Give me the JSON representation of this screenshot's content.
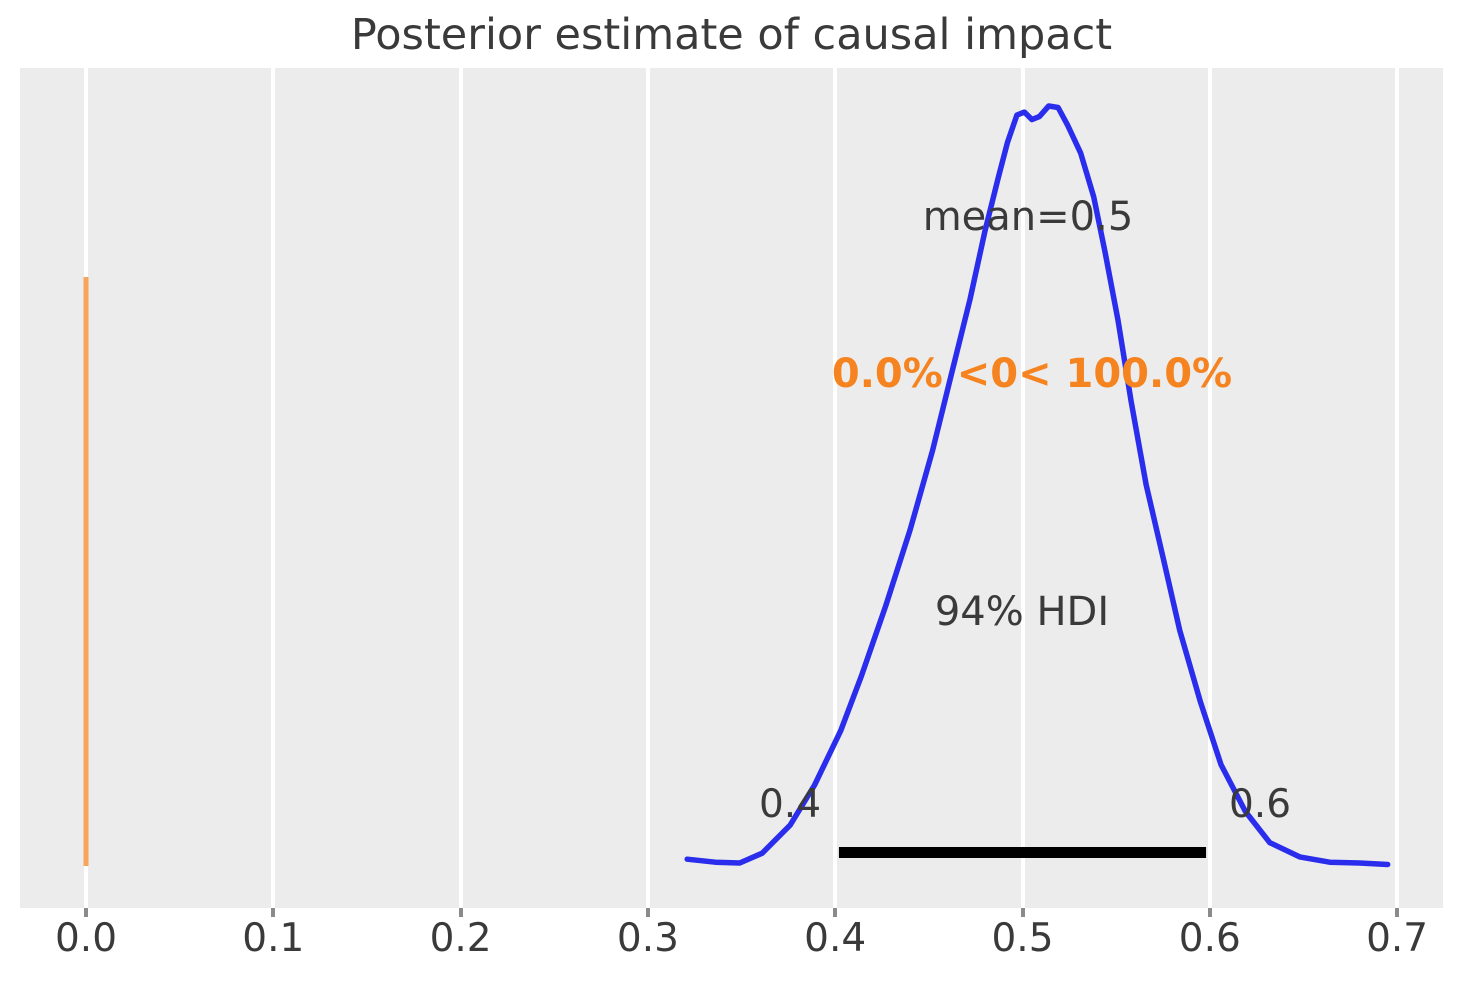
{
  "title": "Posterior estimate of causal impact",
  "chart_data": {
    "type": "area",
    "subtype": "posterior-kde",
    "xlabel": "",
    "ylabel": "",
    "xlim": [
      -0.0352,
      0.7245
    ],
    "grid": "vertical-white-on-gray",
    "x_tick_labels": [
      "0.0",
      "0.1",
      "0.2",
      "0.3",
      "0.4",
      "0.5",
      "0.6",
      "0.7"
    ],
    "x_tick_values": [
      0.0,
      0.1,
      0.2,
      0.3,
      0.4,
      0.5,
      0.6,
      0.7
    ],
    "kde": {
      "x": [
        0.321,
        0.336,
        0.349,
        0.361,
        0.376,
        0.389,
        0.403,
        0.414,
        0.427,
        0.44,
        0.452,
        0.462,
        0.472,
        0.48,
        0.487,
        0.492,
        0.497,
        0.501,
        0.505,
        0.509,
        0.514,
        0.519,
        0.524,
        0.531,
        0.538,
        0.544,
        0.551,
        0.558,
        0.566,
        0.575,
        0.584,
        0.595,
        0.606,
        0.619,
        0.632,
        0.648,
        0.664,
        0.68,
        0.695
      ],
      "density": [
        0.005,
        0.001,
        0.0,
        0.013,
        0.05,
        0.103,
        0.175,
        0.247,
        0.34,
        0.44,
        0.545,
        0.645,
        0.745,
        0.835,
        0.905,
        0.952,
        0.988,
        0.992,
        0.982,
        0.986,
        1.0,
        0.998,
        0.975,
        0.938,
        0.88,
        0.808,
        0.717,
        0.61,
        0.5,
        0.404,
        0.307,
        0.213,
        0.13,
        0.068,
        0.027,
        0.008,
        0.001,
        0.0,
        -0.002
      ]
    },
    "mean": {
      "value": 0.5,
      "label": "mean=0.5"
    },
    "ref_val": {
      "value": 0,
      "label": "0.0% <0< 100.0%"
    },
    "hdi": {
      "prob_label": "94% HDI",
      "lo": 0.4,
      "hi": 0.6,
      "lo_label": "0.4",
      "hi_label": "0.6",
      "bar_lo": 0.402,
      "bar_hi": 0.598
    },
    "colors": {
      "kde_line": "#2a2eec",
      "ref_line": "#f8a55c",
      "ref_text": "#f5831f",
      "hdi_bar": "#000000",
      "plot_bg": "#ececec",
      "grid_line": "#ffffff",
      "text": "#3a3a3a",
      "tick_mark": "#8a8a8a"
    }
  }
}
